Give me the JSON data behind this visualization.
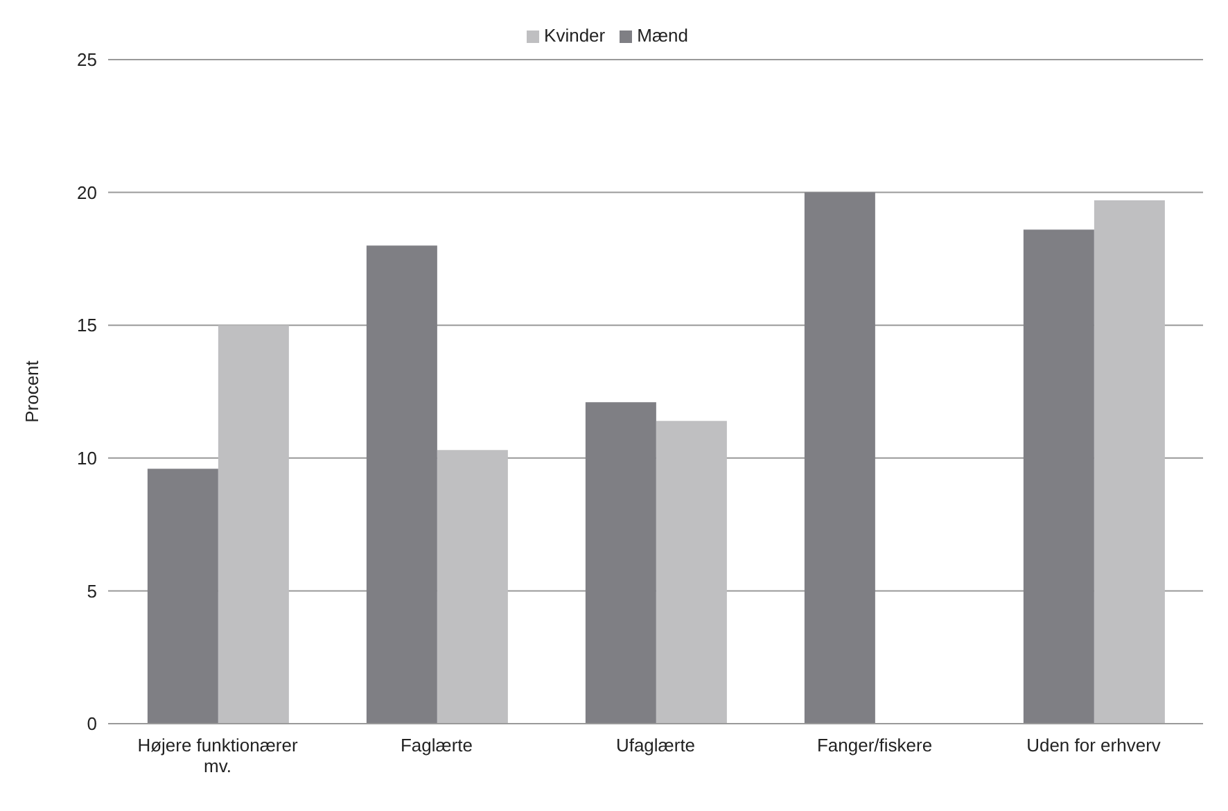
{
  "chart_data": {
    "type": "bar",
    "ylabel": "Procent",
    "categories": [
      "Højere funktionærer mv.",
      "Faglærte",
      "Ufaglærte",
      "Fanger/fiskere",
      "Uden for erhverv"
    ],
    "series": [
      {
        "name": "Mænd",
        "color": "#7f7f84",
        "values": [
          9.6,
          18.0,
          12.1,
          20.0,
          18.6
        ]
      },
      {
        "name": "Kvinder",
        "color": "#bfbfc1",
        "values": [
          15.0,
          10.3,
          11.4,
          null,
          19.7
        ]
      }
    ],
    "ylim": [
      0,
      25
    ],
    "yticks": [
      0,
      5,
      10,
      15,
      20,
      25
    ],
    "grid": "y",
    "legend": "top"
  }
}
